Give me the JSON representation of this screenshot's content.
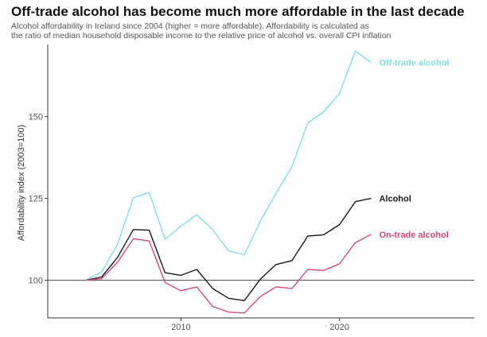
{
  "chart_data": {
    "type": "line",
    "title": "Off-trade alcohol has become much more affordable in the last decade",
    "subtitle_lines": [
      "Alcohol affordability in Ireland since 2004 (higher = more affordable). Affordability is calculated as",
      "the ratio of median household disposable income to the relative price of alcohol vs. overall CPI inflation"
    ],
    "xlabel": "",
    "ylabel": "Affordability index (2003=100)",
    "xlim": [
      2001.6,
      2028.5
    ],
    "ylim": [
      88.5,
      172
    ],
    "x_ticks": [
      2010,
      2020
    ],
    "y_ticks": [
      100,
      125,
      150
    ],
    "reference_line": 100,
    "grid": false,
    "x": [
      2004,
      2005,
      2006,
      2007,
      2008,
      2009,
      2010,
      2011,
      2012,
      2013,
      2014,
      2015,
      2016,
      2017,
      2018,
      2019,
      2020,
      2021,
      2022
    ],
    "series": [
      {
        "name": "Off-trade alcohol",
        "color": "#7fe0e0",
        "values": [
          100,
          102.5,
          111,
          125.2,
          126.8,
          112.5,
          116.5,
          120,
          115.5,
          109,
          107.8,
          118,
          126.5,
          134.8,
          148,
          151.5,
          157,
          170,
          166.5
        ]
      },
      {
        "name": "Alcohol",
        "color": "#1a1a1a",
        "values": [
          100,
          101,
          107,
          115.5,
          115.3,
          102.3,
          101.5,
          103.3,
          97.5,
          94.5,
          93.8,
          100.3,
          104.8,
          106,
          113.5,
          113.9,
          117,
          124,
          125
        ]
      },
      {
        "name": "On-trade alcohol",
        "color": "#d9487a",
        "values": [
          100,
          100.5,
          105.5,
          112.7,
          112,
          99.3,
          96.8,
          98,
          92,
          90.3,
          90,
          95,
          98,
          97.5,
          103.3,
          103,
          105,
          111.5,
          114
        ]
      }
    ]
  }
}
